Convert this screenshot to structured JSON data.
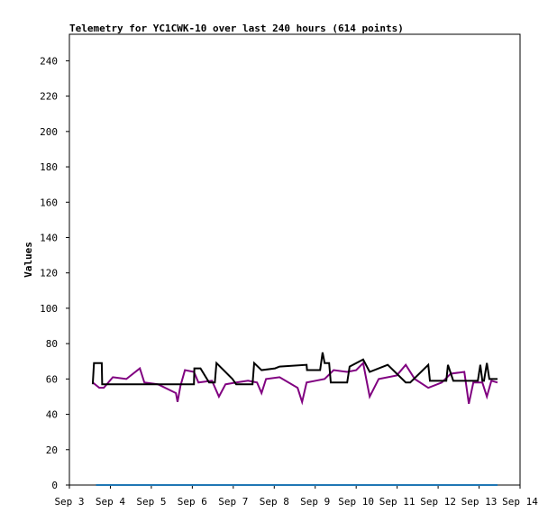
{
  "chart_data": {
    "type": "line",
    "title": "Telemetry for YC1CWK-10 over last 240 hours (614 points)",
    "y_label": "Values",
    "xlim": [
      3,
      14
    ],
    "xticks": [
      {
        "value": 3,
        "label": "Sep 3"
      },
      {
        "value": 4,
        "label": "Sep 4"
      },
      {
        "value": 5,
        "label": "Sep 5"
      },
      {
        "value": 6,
        "label": "Sep 6"
      },
      {
        "value": 7,
        "label": "Sep 7"
      },
      {
        "value": 8,
        "label": "Sep 8"
      },
      {
        "value": 9,
        "label": "Sep 9"
      },
      {
        "value": 10,
        "label": "Sep 10"
      },
      {
        "value": 11,
        "label": "Sep 11"
      },
      {
        "value": 12,
        "label": "Sep 12"
      },
      {
        "value": 13,
        "label": "Sep 13"
      },
      {
        "value": 14,
        "label": "Sep 14"
      }
    ],
    "ylim": [
      0,
      255
    ],
    "yticks": [
      0,
      20,
      40,
      60,
      80,
      100,
      120,
      140,
      160,
      180,
      200,
      220,
      240
    ],
    "series": [
      {
        "color": "#800080",
        "x": [
          3.57,
          3.73,
          3.84,
          4.06,
          4.39,
          4.72,
          4.83,
          5.16,
          5.6,
          5.64,
          5.71,
          5.82,
          6.04,
          6.15,
          6.48,
          6.65,
          6.81,
          7.07,
          7.36,
          7.58,
          7.69,
          7.8,
          8.13,
          8.57,
          8.68,
          8.79,
          9.01,
          9.23,
          9.45,
          9.78,
          10.0,
          10.17,
          10.33,
          10.55,
          10.99,
          11.21,
          11.43,
          11.76,
          12.09,
          12.31,
          12.64,
          12.75,
          12.86,
          13.08,
          13.19,
          13.3,
          13.45
        ],
        "values": [
          58,
          55,
          55,
          61,
          60,
          66,
          58,
          57,
          52,
          47,
          56,
          65,
          64,
          58,
          59,
          50,
          57,
          58,
          59,
          58,
          52,
          60,
          61,
          55,
          47,
          58,
          59,
          60,
          65,
          64,
          65,
          69,
          50,
          60,
          62,
          68,
          60,
          55,
          58,
          63,
          64,
          46,
          58,
          58,
          50,
          59,
          58
        ]
      },
      {
        "color": "#000000",
        "x": [
          3.57,
          3.6,
          3.79,
          3.8,
          6.04,
          6.05,
          6.2,
          6.41,
          6.55,
          6.59,
          6.98,
          7.07,
          7.47,
          7.51,
          7.69,
          8.02,
          8.13,
          8.79,
          8.8,
          9.12,
          9.18,
          9.23,
          9.34,
          9.38,
          9.78,
          9.84,
          10.17,
          10.33,
          10.77,
          11.21,
          11.32,
          11.76,
          11.8,
          12.2,
          12.24,
          12.37,
          12.97,
          13.03,
          13.08,
          13.12,
          13.19,
          13.25,
          13.45
        ],
        "values": [
          57,
          69,
          69,
          57,
          57,
          66,
          66,
          58,
          58,
          69,
          60,
          57,
          57,
          69,
          65,
          66,
          67,
          68,
          65,
          65,
          75,
          69,
          69,
          58,
          58,
          67,
          71,
          64,
          68,
          58,
          58,
          68,
          59,
          59,
          68,
          59,
          59,
          68,
          59,
          59,
          69,
          60,
          60
        ]
      },
      {
        "color": "#1f77b4",
        "x": [
          3.65,
          13.45
        ],
        "values": [
          0,
          0
        ]
      }
    ]
  }
}
